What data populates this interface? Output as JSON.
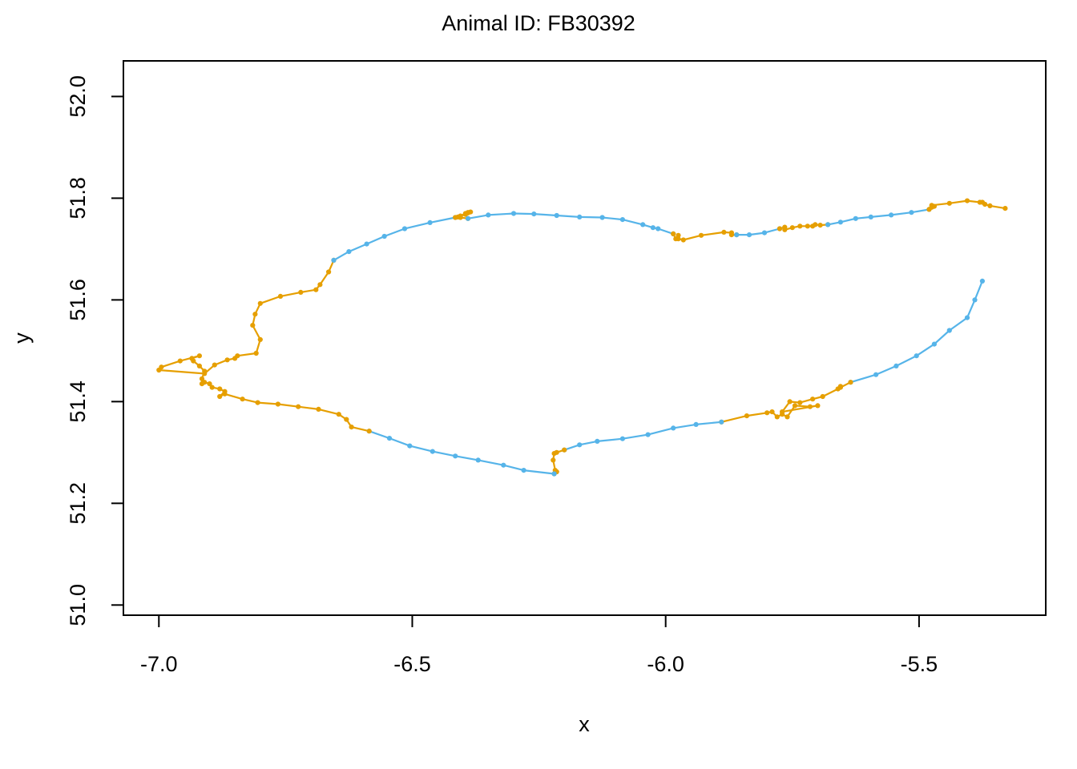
{
  "chart_data": {
    "type": "line",
    "title": "Animal ID: FB30392",
    "xlabel": "x",
    "ylabel": "y",
    "xlim": [
      -7.07,
      -5.25
    ],
    "ylim": [
      50.98,
      52.07
    ],
    "xticks": [
      {
        "value": -7.0,
        "label": "-7.0"
      },
      {
        "value": -6.5,
        "label": "-6.5"
      },
      {
        "value": -6.0,
        "label": "-6.0"
      },
      {
        "value": -5.5,
        "label": "-5.5"
      }
    ],
    "yticks": [
      {
        "value": 51.0,
        "label": "51.0"
      },
      {
        "value": 51.2,
        "label": "51.2"
      },
      {
        "value": 51.4,
        "label": "51.4"
      },
      {
        "value": 51.6,
        "label": "51.6"
      },
      {
        "value": 51.8,
        "label": "51.8"
      },
      {
        "value": 52.0,
        "label": "52.0"
      }
    ],
    "grid": false,
    "colors": {
      "travelling": "#56B4E9",
      "resident": "#E69F00"
    },
    "segments": [
      {
        "state": "travelling",
        "points": [
          [
            -5.375,
            51.637
          ],
          [
            -5.39,
            51.6
          ],
          [
            -5.405,
            51.565
          ],
          [
            -5.44,
            51.54
          ],
          [
            -5.47,
            51.513
          ],
          [
            -5.505,
            51.49
          ],
          [
            -5.545,
            51.47
          ],
          [
            -5.585,
            51.453
          ],
          [
            -5.635,
            51.438
          ]
        ]
      },
      {
        "state": "resident",
        "points": [
          [
            -5.635,
            51.438
          ],
          [
            -5.655,
            51.428
          ],
          [
            -5.655,
            51.43
          ],
          [
            -5.66,
            51.425
          ],
          [
            -5.69,
            51.41
          ],
          [
            -5.71,
            51.405
          ],
          [
            -5.735,
            51.398
          ],
          [
            -5.755,
            51.4
          ],
          [
            -5.77,
            51.38
          ],
          [
            -5.7,
            51.392
          ],
          [
            -5.715,
            51.39
          ],
          [
            -5.745,
            51.392
          ],
          [
            -5.76,
            51.37
          ],
          [
            -5.77,
            51.375
          ],
          [
            -5.78,
            51.37
          ],
          [
            -5.79,
            51.38
          ],
          [
            -5.8,
            51.378
          ],
          [
            -5.84,
            51.372
          ],
          [
            -5.89,
            51.36
          ]
        ]
      },
      {
        "state": "travelling",
        "points": [
          [
            -5.89,
            51.36
          ],
          [
            -5.94,
            51.355
          ],
          [
            -5.985,
            51.348
          ],
          [
            -6.035,
            51.335
          ],
          [
            -6.085,
            51.327
          ],
          [
            -6.135,
            51.322
          ],
          [
            -6.17,
            51.315
          ],
          [
            -6.2,
            51.305
          ]
        ]
      },
      {
        "state": "resident",
        "points": [
          [
            -6.2,
            51.305
          ],
          [
            -6.215,
            51.3
          ],
          [
            -6.22,
            51.298
          ],
          [
            -6.222,
            51.285
          ],
          [
            -6.218,
            51.265
          ],
          [
            -6.215,
            51.262
          ],
          [
            -6.22,
            51.258
          ]
        ]
      },
      {
        "state": "travelling",
        "points": [
          [
            -6.22,
            51.258
          ],
          [
            -6.28,
            51.265
          ],
          [
            -6.32,
            51.275
          ],
          [
            -6.37,
            51.285
          ],
          [
            -6.415,
            51.293
          ],
          [
            -6.46,
            51.302
          ],
          [
            -6.505,
            51.313
          ],
          [
            -6.545,
            51.328
          ],
          [
            -6.585,
            51.342
          ]
        ]
      },
      {
        "state": "resident",
        "points": [
          [
            -6.585,
            51.342
          ],
          [
            -6.62,
            51.35
          ],
          [
            -6.63,
            51.365
          ],
          [
            -6.645,
            51.375
          ],
          [
            -6.685,
            51.385
          ],
          [
            -6.725,
            51.39
          ],
          [
            -6.765,
            51.395
          ],
          [
            -6.805,
            51.398
          ],
          [
            -6.835,
            51.405
          ],
          [
            -6.87,
            51.415
          ],
          [
            -6.88,
            51.41
          ],
          [
            -6.87,
            51.42
          ],
          [
            -6.88,
            51.425
          ],
          [
            -6.895,
            51.428
          ],
          [
            -6.9,
            51.435
          ],
          [
            -6.91,
            51.438
          ],
          [
            -6.915,
            51.435
          ],
          [
            -6.915,
            51.445
          ],
          [
            -6.91,
            51.46
          ],
          [
            -6.92,
            51.47
          ],
          [
            -6.932,
            51.48
          ],
          [
            -6.935,
            51.485
          ],
          [
            -6.92,
            51.49
          ],
          [
            -6.958,
            51.48
          ],
          [
            -6.995,
            51.468
          ],
          [
            -7.0,
            51.462
          ],
          [
            -6.91,
            51.455
          ],
          [
            -6.89,
            51.472
          ],
          [
            -6.865,
            51.482
          ],
          [
            -6.85,
            51.485
          ],
          [
            -6.845,
            51.49
          ],
          [
            -6.808,
            51.495
          ],
          [
            -6.8,
            51.522
          ],
          [
            -6.815,
            51.55
          ],
          [
            -6.81,
            51.572
          ],
          [
            -6.8,
            51.593
          ],
          [
            -6.76,
            51.607
          ],
          [
            -6.72,
            51.615
          ],
          [
            -6.69,
            51.62
          ],
          [
            -6.682,
            51.63
          ],
          [
            -6.665,
            51.655
          ],
          [
            -6.655,
            51.678
          ]
        ]
      },
      {
        "state": "travelling",
        "points": [
          [
            -6.655,
            51.678
          ],
          [
            -6.625,
            51.695
          ],
          [
            -6.59,
            51.71
          ],
          [
            -6.555,
            51.725
          ],
          [
            -6.515,
            51.74
          ],
          [
            -6.465,
            51.752
          ],
          [
            -6.415,
            51.762
          ]
        ]
      },
      {
        "state": "resident",
        "points": [
          [
            -6.415,
            51.762
          ],
          [
            -6.405,
            51.765
          ],
          [
            -6.395,
            51.768
          ],
          [
            -6.39,
            51.771
          ],
          [
            -6.385,
            51.773
          ],
          [
            -6.39,
            51.772
          ],
          [
            -6.395,
            51.77
          ],
          [
            -6.41,
            51.763
          ],
          [
            -6.405,
            51.762
          ],
          [
            -6.39,
            51.76
          ]
        ]
      },
      {
        "state": "travelling",
        "points": [
          [
            -6.39,
            51.76
          ],
          [
            -6.35,
            51.767
          ],
          [
            -6.3,
            51.77
          ],
          [
            -6.26,
            51.769
          ],
          [
            -6.215,
            51.766
          ],
          [
            -6.17,
            51.763
          ],
          [
            -6.125,
            51.762
          ],
          [
            -6.085,
            51.758
          ],
          [
            -6.045,
            51.748
          ],
          [
            -6.025,
            51.742
          ],
          [
            -6.015,
            51.74
          ],
          [
            -5.985,
            51.73
          ]
        ]
      },
      {
        "state": "resident",
        "points": [
          [
            -5.985,
            51.73
          ],
          [
            -5.98,
            51.72
          ],
          [
            -5.975,
            51.727
          ],
          [
            -5.975,
            51.72
          ],
          [
            -5.965,
            51.718
          ],
          [
            -5.93,
            51.727
          ],
          [
            -5.885,
            51.733
          ],
          [
            -5.87,
            51.732
          ],
          [
            -5.87,
            51.728
          ],
          [
            -5.86,
            51.728
          ]
        ]
      },
      {
        "state": "travelling",
        "points": [
          [
            -5.86,
            51.728
          ],
          [
            -5.835,
            51.728
          ],
          [
            -5.805,
            51.732
          ],
          [
            -5.775,
            51.74
          ]
        ]
      },
      {
        "state": "resident",
        "points": [
          [
            -5.775,
            51.74
          ],
          [
            -5.765,
            51.743
          ],
          [
            -5.765,
            51.738
          ],
          [
            -5.75,
            51.742
          ],
          [
            -5.735,
            51.745
          ],
          [
            -5.72,
            51.745
          ],
          [
            -5.71,
            51.745
          ],
          [
            -5.705,
            51.748
          ],
          [
            -5.695,
            51.747
          ],
          [
            -5.68,
            51.748
          ]
        ]
      },
      {
        "state": "travelling",
        "points": [
          [
            -5.68,
            51.748
          ],
          [
            -5.655,
            51.753
          ],
          [
            -5.625,
            51.76
          ],
          [
            -5.595,
            51.763
          ],
          [
            -5.555,
            51.767
          ],
          [
            -5.515,
            51.772
          ],
          [
            -5.48,
            51.778
          ]
        ]
      },
      {
        "state": "resident",
        "points": [
          [
            -5.48,
            51.778
          ],
          [
            -5.475,
            51.782
          ],
          [
            -5.47,
            51.784
          ],
          [
            -5.475,
            51.786
          ],
          [
            -5.44,
            51.79
          ],
          [
            -5.405,
            51.795
          ],
          [
            -5.38,
            51.792
          ],
          [
            -5.375,
            51.792
          ],
          [
            -5.37,
            51.788
          ],
          [
            -5.36,
            51.785
          ],
          [
            -5.33,
            51.78
          ]
        ]
      }
    ]
  }
}
